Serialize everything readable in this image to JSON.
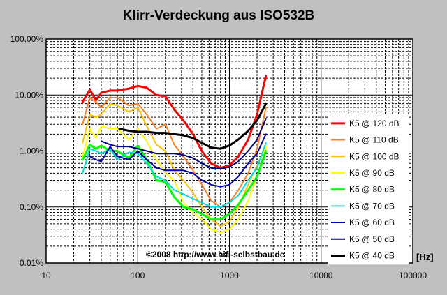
{
  "chart_data": {
    "type": "line",
    "title": "Klirr-Verdeckung aus ISO532B",
    "x_scale": "log",
    "y_scale": "log",
    "xlim": [
      10,
      100000
    ],
    "ylim": [
      0.01,
      100
    ],
    "x_ticks": [
      10,
      100,
      1000,
      10000,
      100000
    ],
    "x_tick_labels": [
      "10",
      "100",
      "1000",
      "10000",
      "100000"
    ],
    "y_ticks": [
      0.01,
      0.1,
      1,
      10,
      100
    ],
    "y_tick_labels": [
      "0.01%",
      "0.10%",
      "1.00%",
      "10.00%",
      "100.00%"
    ],
    "x_unit_label": "[Hz]",
    "annotation": "©2008 http://www.hifi-selbstbau.de",
    "grid": true,
    "legend_position": "right",
    "series": [
      {
        "name": "K5 @ 120 dB",
        "color": "#ff0000",
        "width": 3,
        "x": [
          25,
          30,
          35,
          40,
          50,
          60,
          80,
          100,
          125,
          160,
          200,
          250,
          315,
          400,
          500,
          630,
          800,
          1000,
          1250,
          1600,
          2000,
          2500
        ],
        "y": [
          7.5,
          12.5,
          8,
          11,
          12,
          12,
          13,
          14.5,
          13.5,
          10,
          9.5,
          5.5,
          3.5,
          2,
          1,
          0.6,
          0.5,
          0.55,
          0.8,
          1.6,
          4.5,
          22
        ]
      },
      {
        "name": "K5 @ 110 dB",
        "color": "#ff7f27",
        "width": 2,
        "x": [
          25,
          30,
          35,
          40,
          50,
          60,
          80,
          100,
          125,
          160,
          200,
          250,
          315,
          400,
          500,
          630,
          800,
          1000,
          1250,
          1600,
          2000,
          2500
        ],
        "y": [
          3,
          9,
          7.5,
          6,
          9,
          9,
          6.5,
          7,
          4.5,
          2.5,
          3,
          1.3,
          0.8,
          0.45,
          0.25,
          0.13,
          0.1,
          0.12,
          0.2,
          0.4,
          1.1,
          6
        ]
      },
      {
        "name": "K5 @ 100 dB",
        "color": "#ffc000",
        "width": 2,
        "x": [
          25,
          30,
          35,
          40,
          50,
          60,
          80,
          100,
          125,
          160,
          200,
          250,
          315,
          400,
          500,
          630,
          800,
          1000,
          1250,
          1600,
          2000,
          2500
        ],
        "y": [
          1.4,
          4.5,
          4,
          4.5,
          7,
          6.5,
          5,
          6,
          2.8,
          1.3,
          1,
          0.45,
          0.3,
          0.18,
          0.1,
          0.06,
          0.045,
          0.055,
          0.1,
          0.25,
          0.55,
          1.2
        ]
      },
      {
        "name": "K5 @ 90 dB",
        "color": "#ffff00",
        "width": 2,
        "x": [
          25,
          30,
          35,
          40,
          50,
          60,
          80,
          100,
          125,
          160,
          200,
          250,
          315,
          400,
          500,
          630,
          800,
          1000,
          1250,
          1600,
          2000,
          2500
        ],
        "y": [
          0.8,
          2.5,
          1.7,
          2.8,
          2.5,
          2.5,
          1.6,
          2.5,
          1.5,
          0.7,
          0.4,
          0.3,
          0.12,
          0.08,
          0.06,
          0.04,
          0.035,
          0.04,
          0.06,
          0.13,
          0.35,
          1.2
        ]
      },
      {
        "name": "K5 @ 80 dB",
        "color": "#00ff00",
        "width": 3,
        "x": [
          25,
          30,
          35,
          40,
          50,
          60,
          80,
          100,
          125,
          160,
          200,
          250,
          315,
          400,
          500,
          630,
          800,
          1000,
          1250,
          1600,
          2000,
          2500
        ],
        "y": [
          0.7,
          1.3,
          1.1,
          1.25,
          1.0,
          1.0,
          0.75,
          1.25,
          0.7,
          0.3,
          0.28,
          0.15,
          0.1,
          0.09,
          0.075,
          0.06,
          0.06,
          0.075,
          0.11,
          0.2,
          0.35,
          1.0
        ]
      },
      {
        "name": "K5 @ 70 dB",
        "color": "#00e0e0",
        "width": 2,
        "x": [
          25,
          30,
          35,
          40,
          50,
          60,
          80,
          100,
          125,
          160,
          200,
          250,
          315,
          400,
          500,
          630,
          800,
          1000,
          1250,
          1600,
          2000,
          2500
        ],
        "y": [
          0.4,
          1.1,
          1.0,
          0.9,
          1.1,
          0.7,
          0.95,
          0.9,
          0.6,
          0.35,
          0.3,
          0.2,
          0.17,
          0.14,
          0.12,
          0.1,
          0.1,
          0.12,
          0.16,
          0.3,
          0.5,
          1.4
        ]
      },
      {
        "name": "K5 @ 60 dB",
        "color": "#0000b0",
        "width": 2,
        "x": [
          30,
          35,
          40,
          50,
          60,
          80,
          100,
          125,
          160,
          200,
          250,
          315,
          400,
          500,
          630,
          800,
          1000,
          1250,
          1600,
          2000,
          2500
        ],
        "y": [
          0.8,
          0.7,
          0.65,
          1.2,
          0.8,
          0.7,
          1.0,
          0.7,
          0.5,
          0.45,
          0.45,
          0.45,
          0.4,
          0.3,
          0.25,
          0.23,
          0.25,
          0.35,
          0.6,
          0.9,
          2.0
        ]
      },
      {
        "name": "K5 @ 50 dB",
        "color": "#000080",
        "width": 2,
        "x": [
          40,
          50,
          60,
          80,
          100,
          125,
          160,
          200,
          250,
          315,
          400,
          500,
          630,
          800,
          1000,
          1250,
          1600,
          2000,
          2500
        ],
        "y": [
          1.5,
          1.3,
          1.2,
          1.2,
          1.1,
          1.0,
          0.9,
          0.9,
          0.9,
          0.85,
          0.75,
          0.6,
          0.5,
          0.48,
          0.52,
          0.65,
          1.0,
          1.6,
          3.8
        ]
      },
      {
        "name": "K5 @ 40 dB",
        "color": "#000000",
        "width": 3,
        "x": [
          63,
          80,
          100,
          125,
          160,
          200,
          250,
          315,
          400,
          500,
          630,
          800,
          1000,
          1250,
          1600,
          2000,
          2500
        ],
        "y": [
          2.5,
          2.3,
          2.2,
          2.2,
          2.1,
          2.1,
          2.0,
          1.9,
          1.7,
          1.4,
          1.15,
          1.1,
          1.25,
          1.6,
          2.3,
          3.5,
          7.0
        ]
      }
    ]
  }
}
